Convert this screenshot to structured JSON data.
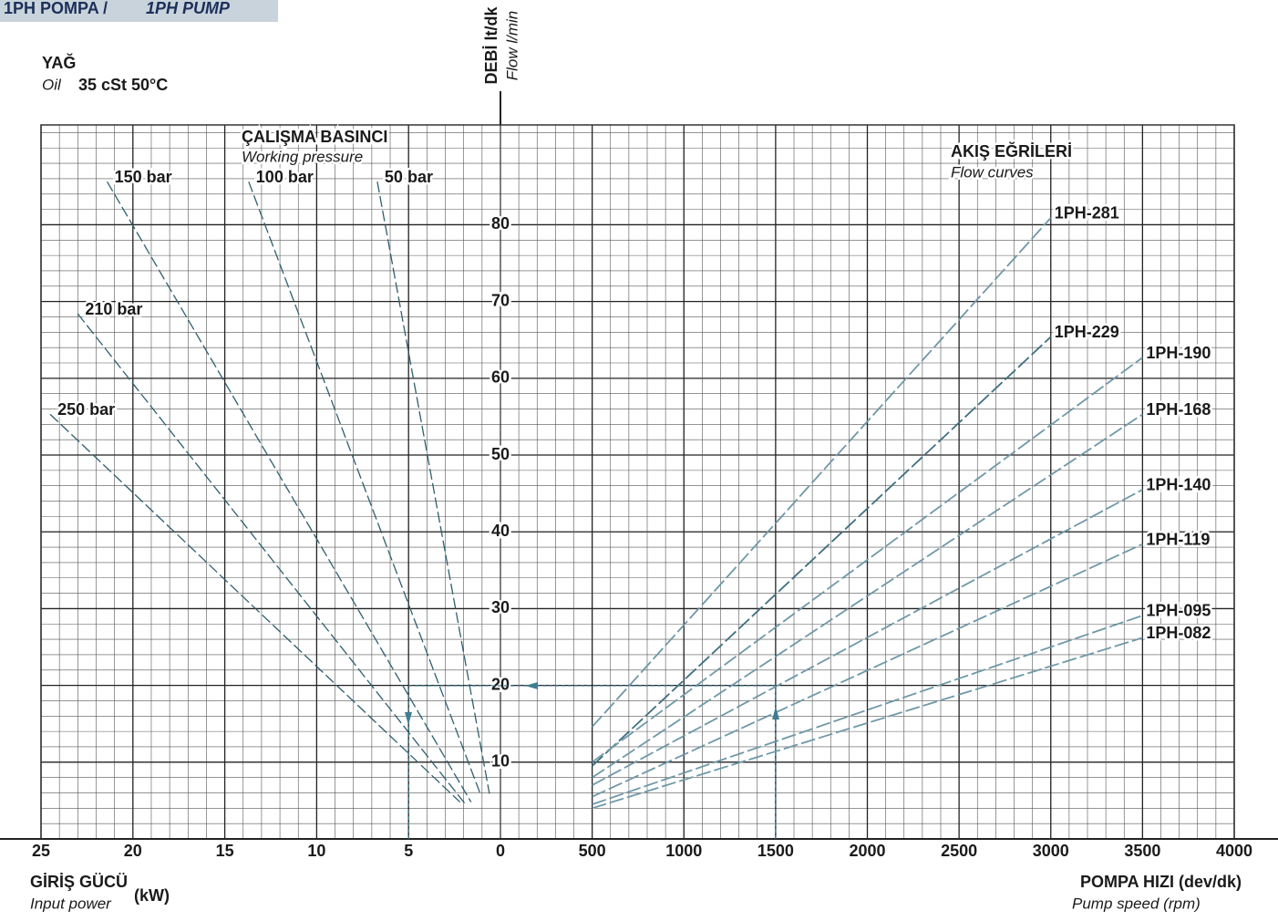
{
  "header": {
    "title_tr": "1PH POMPA /",
    "title_en": "1PH PUMP"
  },
  "oil": {
    "label_tr": "YAĞ",
    "label_en": "Oil",
    "spec": "35 cSt 50°C"
  },
  "chart_data": [
    {
      "type": "line",
      "y_label": "DEBİ lt/dk",
      "y_label_en": "Flow l/min",
      "x_label": "GİRİŞ GÜCÜ",
      "x_label_en": "Input power",
      "x_unit": "(kW)",
      "legend_title": "ÇALIŞMA BASINCI",
      "legend_subtitle": "Working pressure",
      "xlim": [
        25,
        0
      ],
      "xticks": [
        25,
        20,
        15,
        10,
        5,
        0
      ],
      "x_minor_step": 1,
      "ylim": [
        0,
        93
      ],
      "yticks": [
        10,
        20,
        30,
        40,
        50,
        60,
        70,
        80
      ],
      "y_minor_step": 2,
      "grid": true,
      "series": [
        {
          "name": "150 bar",
          "color": "#2f5f6e",
          "x": [
            21.4,
            1.6
          ],
          "values": [
            85.6,
            4.8
          ]
        },
        {
          "name": "100 bar",
          "color": "#2f5f6e",
          "x": [
            13.7,
            1.1
          ],
          "values": [
            85.6,
            5.9
          ]
        },
        {
          "name": "50 bar",
          "color": "#2f5f6e",
          "x": [
            6.7,
            0.6
          ],
          "values": [
            85.6,
            5.9
          ]
        },
        {
          "name": "210 bar",
          "color": "#2f5f6e",
          "x": [
            23.0,
            1.9
          ],
          "values": [
            68.4,
            4.5
          ]
        },
        {
          "name": "250 bar",
          "color": "#2f5f6e",
          "x": [
            24.5,
            2.2
          ],
          "values": [
            55.3,
            4.8
          ]
        }
      ]
    },
    {
      "type": "line",
      "x_label": "POMPA HIZI (dev/dk)",
      "x_label_en": "Pump speed (rpm)",
      "legend_title": "AKIŞ EĞRİLERİ",
      "legend_subtitle": "Flow curves",
      "xlim": [
        0,
        4000
      ],
      "xticks": [
        500,
        1000,
        1500,
        2000,
        2500,
        3000,
        3500,
        4000
      ],
      "x_minor_step": 100,
      "ylim": [
        0,
        93
      ],
      "grid": true,
      "series": [
        {
          "name": "1PH-281",
          "color": "#6f98a8",
          "x": [
            500,
            3000
          ],
          "values": [
            14.6,
            80.9
          ]
        },
        {
          "name": "1PH-229",
          "color": "#3f6f80",
          "x": [
            500,
            3000
          ],
          "values": [
            9.5,
            65.4
          ]
        },
        {
          "name": "1PH-190",
          "color": "#6f98a8",
          "x": [
            500,
            3500
          ],
          "values": [
            10,
            62.7
          ]
        },
        {
          "name": "1PH-168",
          "color": "#6f98a8",
          "x": [
            500,
            3500
          ],
          "values": [
            8,
            55.3
          ]
        },
        {
          "name": "1PH-140",
          "color": "#6f98a8",
          "x": [
            500,
            3500
          ],
          "values": [
            7,
            45.5
          ]
        },
        {
          "name": "1PH-119",
          "color": "#6f98a8",
          "x": [
            500,
            3500
          ],
          "values": [
            5.5,
            38.4
          ]
        },
        {
          "name": "1PH-095",
          "color": "#6f98a8",
          "x": [
            500,
            3500
          ],
          "values": [
            4.5,
            29.1
          ]
        },
        {
          "name": "1PH-082",
          "color": "#6f98a8",
          "x": [
            500,
            3500
          ],
          "values": [
            4,
            26.2
          ]
        }
      ]
    }
  ]
}
